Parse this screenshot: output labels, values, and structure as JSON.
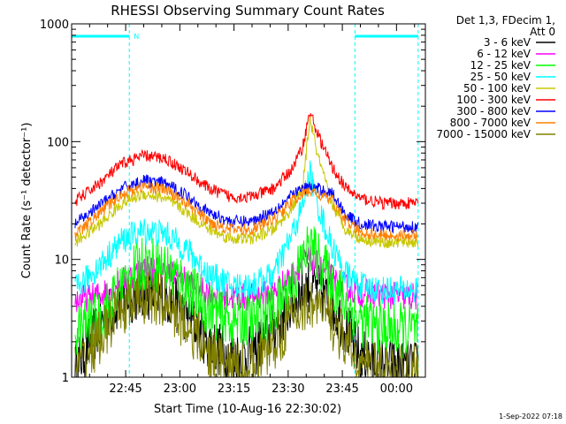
{
  "chart_data": {
    "type": "line",
    "title": "RHESSI Observing Summary Count Rates",
    "xlabel": "Start Time (10-Aug-16 22:30:02)",
    "ylabel": "Count Rate (s⁻¹ detector⁻¹)",
    "yscale": "log",
    "ylim": [
      1,
      1000
    ],
    "xlim": [
      "22:30:02",
      "00:08:00"
    ],
    "x_ticks": [
      "22:45",
      "23:00",
      "23:15",
      "23:30",
      "23:45",
      "00:00"
    ],
    "y_ticks": [
      "1",
      "10",
      "100",
      "1000"
    ],
    "legend_title": [
      "Det 1,3, FDecim 1,",
      "Att 0"
    ],
    "legend_position": "right",
    "footer": "1-Sep-2022 07:18",
    "marker_label": "N",
    "night_intervals": [
      [
        "22:30:02",
        "22:46:00"
      ],
      [
        "23:48:30",
        "00:06:00"
      ]
    ],
    "x": [
      "22:31",
      "22:38",
      "22:44",
      "22:50",
      "22:56",
      "23:02",
      "23:08",
      "23:14",
      "23:20",
      "23:26",
      "23:31",
      "23:34",
      "23:36",
      "23:38",
      "23:42",
      "23:46",
      "23:50",
      "23:56",
      "00:02",
      "00:06"
    ],
    "series": [
      {
        "name": "3 - 6 keV",
        "color": "#000000",
        "values": [
          1.2,
          2.8,
          4.6,
          5.3,
          4.8,
          3.4,
          2.0,
          1.5,
          1.6,
          2.6,
          4.2,
          5.4,
          6.0,
          5.6,
          4.2,
          2.6,
          1.5,
          1.3,
          1.2,
          1.2
        ]
      },
      {
        "name": "6 - 12 keV",
        "color": "#ff00ff",
        "values": [
          4.5,
          5.0,
          6.5,
          8.5,
          8.0,
          6.5,
          5.3,
          4.8,
          4.8,
          5.3,
          7.2,
          9.5,
          10.0,
          9.0,
          7.0,
          5.8,
          5.2,
          5.0,
          4.8,
          4.8
        ]
      },
      {
        "name": "12 - 25 keV",
        "color": "#00ff00",
        "values": [
          2.5,
          3.2,
          6.0,
          9.5,
          8.5,
          5.8,
          3.8,
          3.0,
          3.0,
          3.6,
          6.0,
          10.0,
          13.0,
          10.5,
          6.5,
          4.2,
          3.0,
          2.6,
          2.5,
          2.5
        ]
      },
      {
        "name": "25 - 50 keV",
        "color": "#00ffff",
        "values": [
          5.5,
          9.0,
          14.5,
          17.5,
          16.5,
          12.0,
          7.5,
          6.0,
          6.0,
          7.5,
          16.0,
          28.0,
          55.0,
          30.0,
          13.0,
          7.5,
          6.0,
          5.5,
          5.5,
          5.5
        ]
      },
      {
        "name": "50 - 100 keV",
        "color": "#c8c800",
        "values": [
          14.0,
          20.0,
          30.0,
          36.0,
          33.0,
          25.0,
          18.0,
          15.0,
          15.0,
          18.0,
          27.0,
          40.0,
          160.0,
          80.0,
          30.0,
          18.0,
          15.0,
          14.0,
          14.0,
          14.0
        ]
      },
      {
        "name": "100 - 300 keV",
        "color": "#ff0000",
        "values": [
          31.0,
          45.0,
          65.0,
          76.0,
          72.0,
          55.0,
          40.0,
          34.0,
          34.0,
          40.0,
          58.0,
          90.0,
          180.0,
          120.0,
          62.0,
          40.0,
          33.0,
          30.0,
          30.0,
          30.0
        ]
      },
      {
        "name": "300 - 800 keV",
        "color": "#0000ff",
        "values": [
          20.0,
          29.0,
          40.0,
          47.0,
          44.0,
          35.0,
          25.0,
          21.0,
          21.0,
          26.0,
          35.0,
          40.0,
          41.0,
          40.0,
          37.0,
          24.0,
          20.0,
          19.0,
          19.0,
          19.0
        ]
      },
      {
        "name": "800 - 7000 keV",
        "color": "#ff8000",
        "values": [
          16.0,
          25.0,
          36.0,
          42.0,
          39.0,
          30.0,
          21.0,
          18.0,
          18.0,
          22.0,
          31.0,
          36.0,
          38.0,
          36.0,
          32.0,
          21.0,
          17.0,
          16.0,
          16.0,
          16.0
        ]
      },
      {
        "name": "7000 - 15000 keV",
        "color": "#808000",
        "values": [
          1.1,
          2.2,
          3.8,
          4.8,
          4.4,
          2.8,
          1.6,
          1.2,
          1.2,
          1.9,
          3.2,
          4.0,
          4.3,
          4.0,
          3.0,
          1.9,
          1.3,
          1.1,
          1.1,
          1.1
        ]
      }
    ]
  }
}
